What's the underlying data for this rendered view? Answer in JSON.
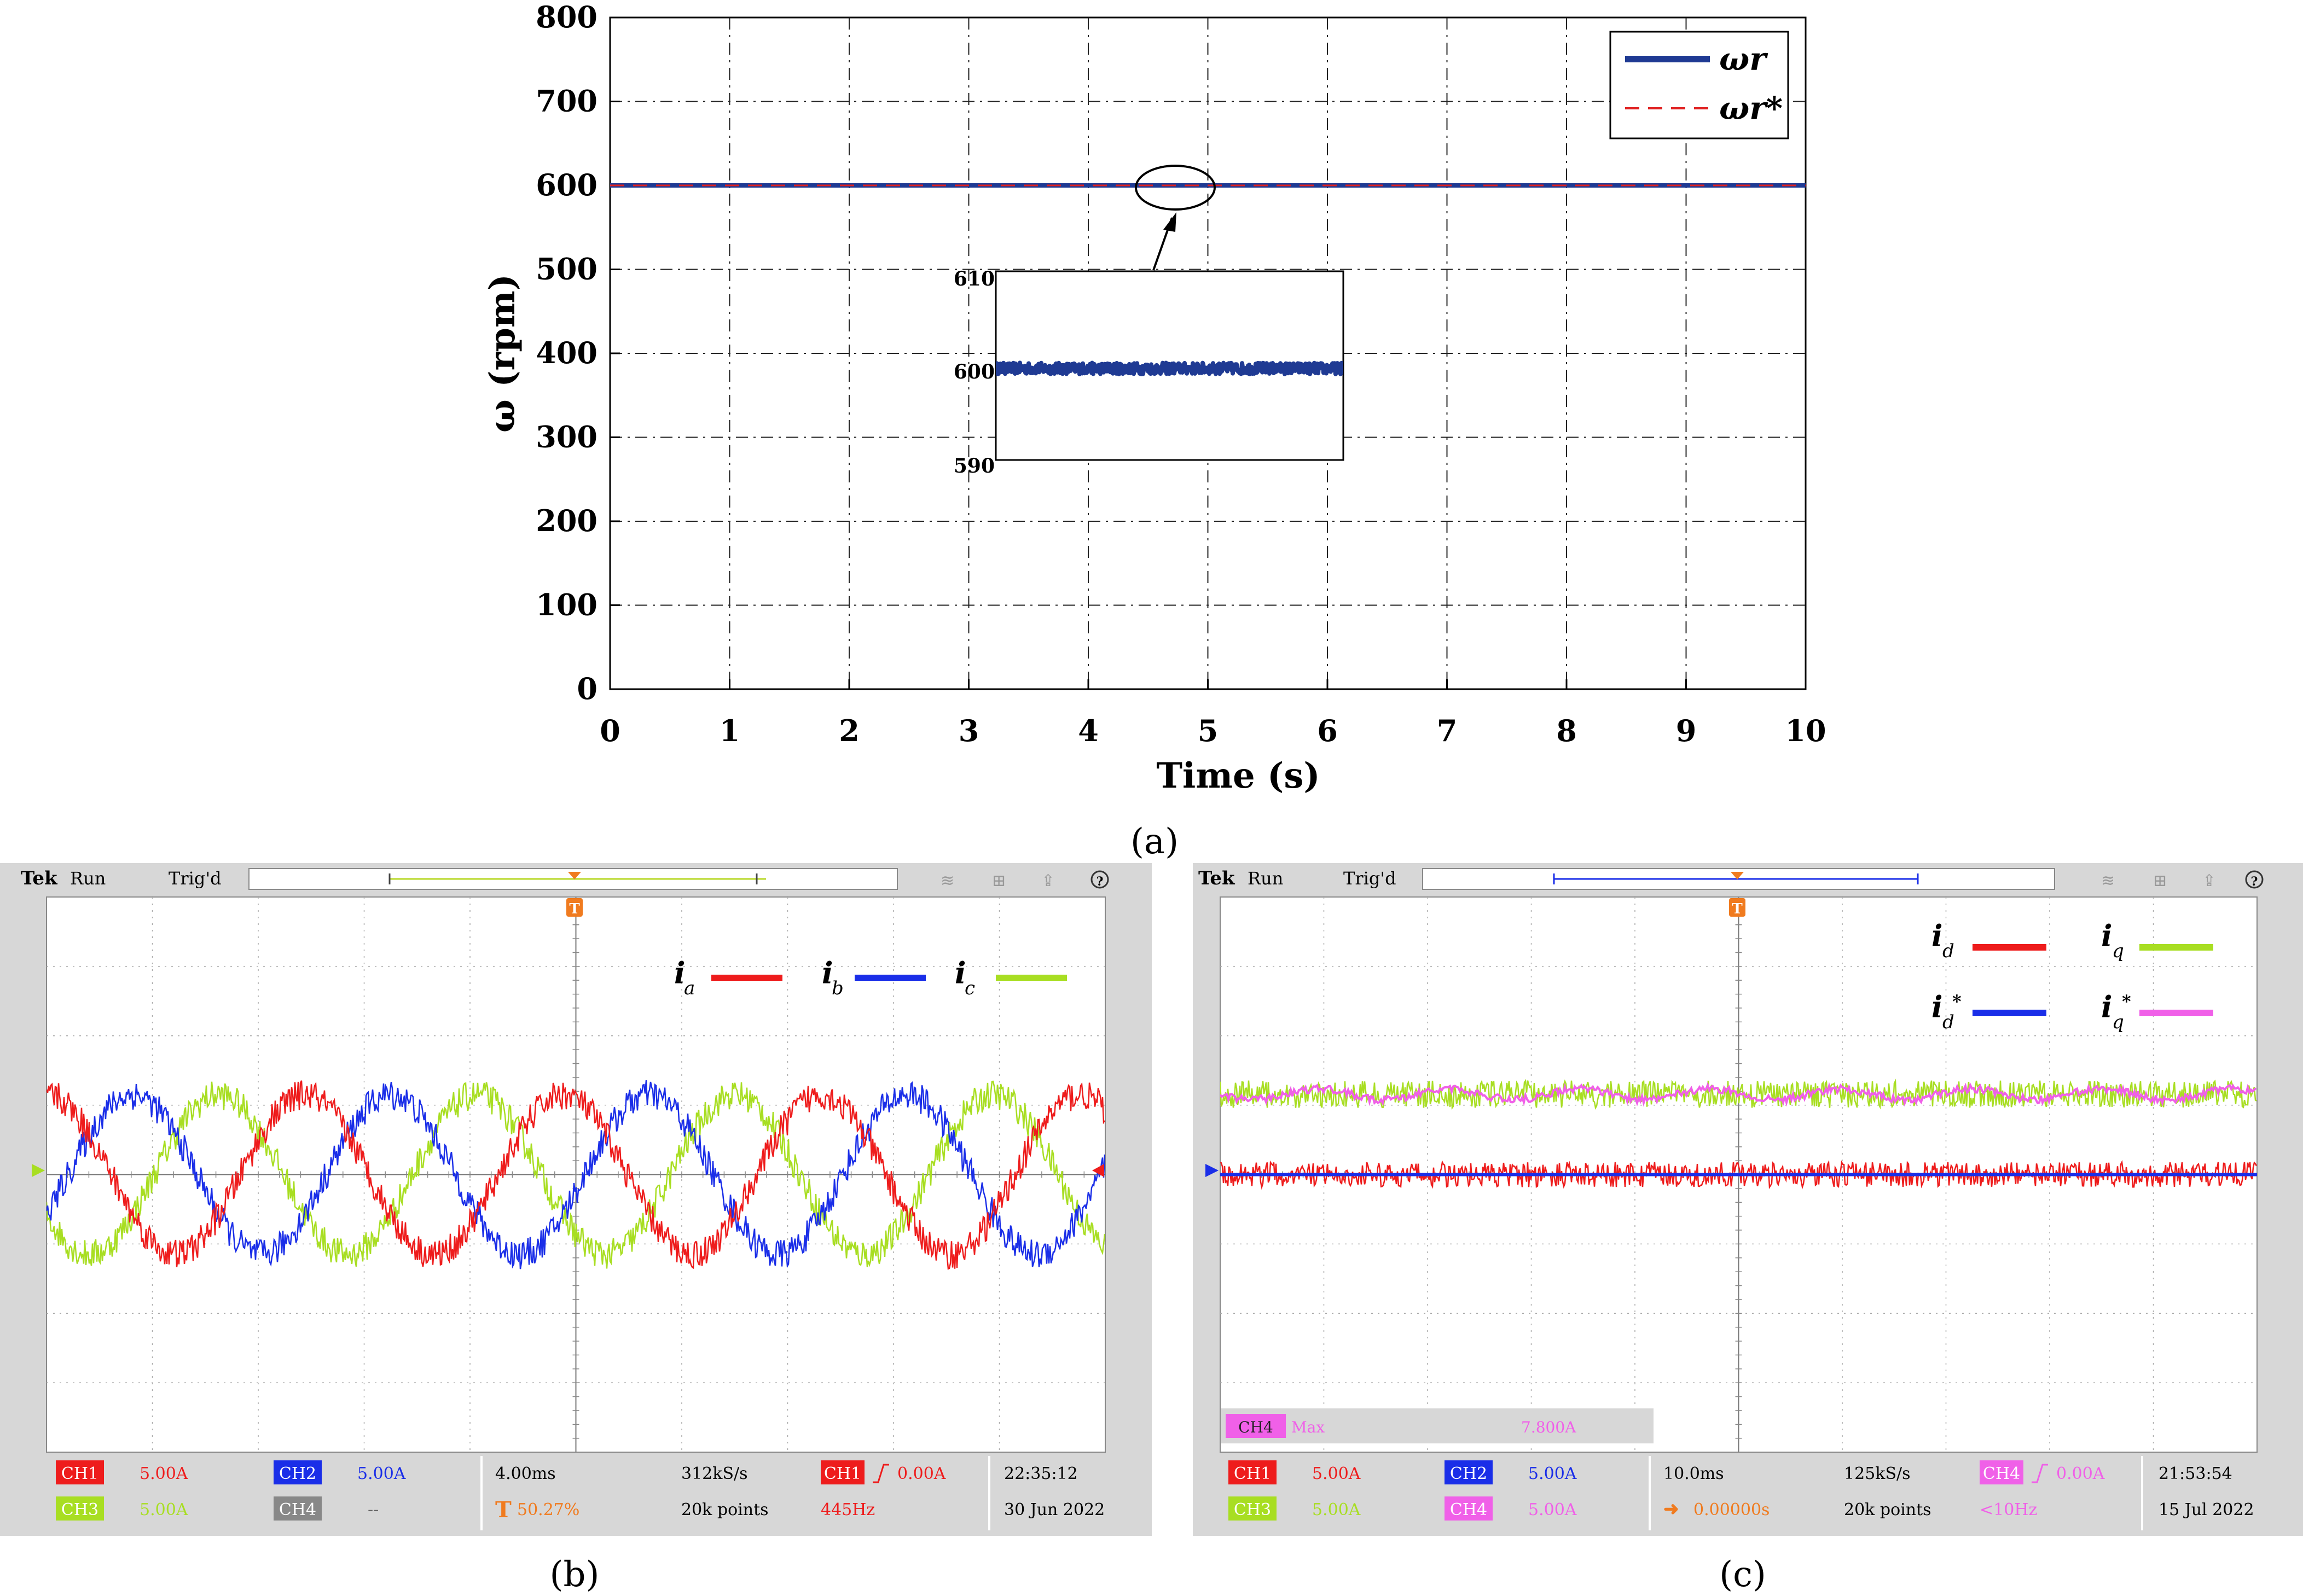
{
  "panel_a": {
    "label": "(a)",
    "chart_data": {
      "type": "line",
      "xlabel": "Time (s)",
      "ylabel": "ω (rpm)",
      "xlim": [
        0,
        10
      ],
      "ylim": [
        0,
        800
      ],
      "xticks": [
        "0",
        "1",
        "2",
        "3",
        "4",
        "5",
        "6",
        "7",
        "8",
        "9",
        "10"
      ],
      "yticks": [
        "0",
        "100",
        "200",
        "300",
        "400",
        "500",
        "600",
        "700",
        "800"
      ],
      "grid": true,
      "legend_position": "top-right",
      "series": [
        {
          "name": "ωr",
          "style": "solid",
          "color": "#1f3a93",
          "x": [
            0,
            10
          ],
          "y": [
            600,
            600
          ]
        },
        {
          "name": "ωr*",
          "style": "dashed",
          "color": "#e02020",
          "x": [
            0,
            10
          ],
          "y": [
            600,
            600
          ]
        }
      ],
      "inset": {
        "ylim": [
          590,
          610
        ],
        "yticks": [
          "610",
          "600",
          "590"
        ],
        "level": 600
      }
    }
  },
  "panel_b": {
    "label": "(b)",
    "header": {
      "brand": "Tek",
      "status": "Run",
      "trigger": "Trig'd"
    },
    "legend": [
      {
        "name": "i",
        "sub": "a",
        "color": "#ee1c1c"
      },
      {
        "name": "i",
        "sub": "b",
        "color": "#1a2ee8"
      },
      {
        "name": "i",
        "sub": "c",
        "color": "#a8de22"
      }
    ],
    "chart_data": {
      "type": "line",
      "waveform": "three-phase sinusoidal currents",
      "time_per_div_ms": 4.0,
      "amplitude_div": 1.15,
      "cycles_on_screen": 4.1,
      "phase_deg": {
        "ia": 90,
        "ib": -30,
        "ic": 210
      }
    },
    "footer": {
      "ch1": "CH1",
      "ch1_val": "5.00A",
      "ch2": "CH2",
      "ch2_val": "5.00A",
      "ch3": "CH3",
      "ch3_val": "5.00A",
      "ch4": "CH4",
      "ch4_val": "--",
      "timebase": "4.00ms",
      "sample_rate": "312kS/s",
      "trig_pos": "50.27%",
      "points": "20k points",
      "trig_ch": "CH1",
      "trig_level": "0.00A",
      "freq": "445Hz",
      "time": "22:35:12",
      "date": "30 Jun 2022"
    }
  },
  "panel_c": {
    "label": "(c)",
    "header": {
      "brand": "Tek",
      "status": "Run",
      "trigger": "Trig'd"
    },
    "legend": [
      {
        "name": "i",
        "sub": "d",
        "star": false,
        "color": "#ee1c1c"
      },
      {
        "name": "i",
        "sub": "q",
        "star": false,
        "color": "#a8de22"
      },
      {
        "name": "i",
        "sub": "d",
        "star": true,
        "color": "#1a2ee8"
      },
      {
        "name": "i",
        "sub": "q",
        "star": true,
        "color": "#f060e8"
      }
    ],
    "measure": {
      "ch": "CH4",
      "label": "Max",
      "value": "7.800A"
    },
    "chart_data": {
      "type": "line",
      "waveform": "dq-axis currents",
      "time_per_div_ms": 10.0,
      "id_level_div": 0.0,
      "iq_level_div": 1.0
    },
    "footer": {
      "ch1": "CH1",
      "ch1_val": "5.00A",
      "ch2": "CH2",
      "ch2_val": "5.00A",
      "ch3": "CH3",
      "ch3_val": "5.00A",
      "ch4": "CH4",
      "ch4_val": "5.00A",
      "timebase": "10.0ms",
      "sample_rate": "125kS/s",
      "trig_pos": "0.00000s",
      "points": "20k points",
      "trig_ch": "CH4",
      "trig_level": "0.00A",
      "freq": "<10Hz",
      "time": "21:53:54",
      "date": "15 Jul 2022"
    }
  }
}
